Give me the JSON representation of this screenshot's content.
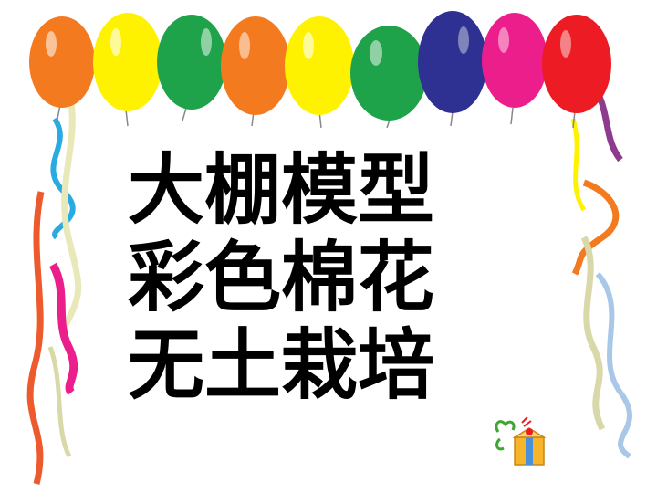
{
  "slide": {
    "title_lines": [
      "大棚模型",
      "彩色棉花",
      "无土栽培"
    ]
  },
  "decor": {
    "balloon_colors": [
      "#F47A1F",
      "#FFF200",
      "#1FA34A",
      "#F47A1F",
      "#FFF200",
      "#1FA34A",
      "#2E3192",
      "#EC1E8C",
      "#ED1C24"
    ],
    "ribbon_colors": [
      "#29ABE2",
      "#F2F2C0",
      "#F47A1F",
      "#EC1E8C",
      "#8E3B8F",
      "#D8D8A8",
      "#A9C8E8",
      "#ED5A2D"
    ],
    "icons": [
      "balloon-garland",
      "streamer-ribbons",
      "gift-box-icon"
    ]
  }
}
